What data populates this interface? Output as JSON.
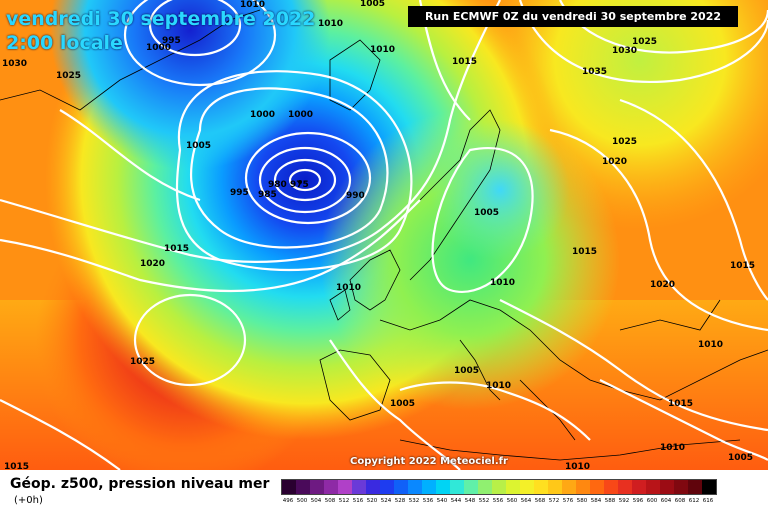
{
  "title_line1": "vendredi 30 septembre 2022",
  "title_line2": "2:00 locale",
  "run_info": "Run ECMWF 0Z du vendredi 30 septembre 2022",
  "copyright": "Copyright 2022 Meteociel.fr",
  "legend": {
    "title": "Géop. z500, pression niveau mer",
    "subtitle": "(+0h)",
    "ticks": [
      "496",
      "500",
      "504",
      "508",
      "512",
      "516",
      "520",
      "524",
      "528",
      "532",
      "536",
      "540",
      "544",
      "548",
      "552",
      "556",
      "560",
      "564",
      "568",
      "572",
      "576",
      "580",
      "584",
      "588",
      "592",
      "596",
      "600",
      "604",
      "608",
      "612",
      "616"
    ],
    "colors": [
      "#2a0030",
      "#4a0a5a",
      "#6e1a82",
      "#8e2aa6",
      "#b040c8",
      "#6a3ad8",
      "#3a2ae0",
      "#1e3cf0",
      "#1060f8",
      "#0a88ff",
      "#00b0ff",
      "#00d4f4",
      "#30e8d8",
      "#60f0a8",
      "#90f070",
      "#b8f048",
      "#dcf430",
      "#f4f028",
      "#ffe020",
      "#ffc818",
      "#ffa814",
      "#ff8810",
      "#ff6810",
      "#f84818",
      "#e83020",
      "#d01e20",
      "#b81418",
      "#9c0c14",
      "#800810",
      "#60040c",
      "#000000"
    ]
  },
  "isobar_labels": [
    {
      "text": "1010"
    },
    {
      "text": "1005"
    },
    {
      "text": "995"
    },
    {
      "text": "1000"
    },
    {
      "text": "1030"
    },
    {
      "text": "1025"
    },
    {
      "text": "1010"
    },
    {
      "text": "1010"
    },
    {
      "text": "1015"
    },
    {
      "text": "1030"
    },
    {
      "text": "1025"
    },
    {
      "text": "1035"
    },
    {
      "text": "1000"
    },
    {
      "text": "1000"
    },
    {
      "text": "1005"
    },
    {
      "text": "1025"
    },
    {
      "text": "1020"
    },
    {
      "text": "980"
    },
    {
      "text": "975"
    },
    {
      "text": "995"
    },
    {
      "text": "985"
    },
    {
      "text": "990"
    },
    {
      "text": "1005"
    },
    {
      "text": "1015"
    },
    {
      "text": "1020"
    },
    {
      "text": "1015"
    },
    {
      "text": "1015"
    },
    {
      "text": "1010"
    },
    {
      "text": "1010"
    },
    {
      "text": "1020"
    },
    {
      "text": "1025"
    },
    {
      "text": "1010"
    },
    {
      "text": "1005"
    },
    {
      "text": "1010"
    },
    {
      "text": "1005"
    },
    {
      "text": "1015"
    },
    {
      "text": "1010"
    },
    {
      "text": "1015"
    },
    {
      "text": "1005"
    },
    {
      "text": "1010"
    }
  ]
}
